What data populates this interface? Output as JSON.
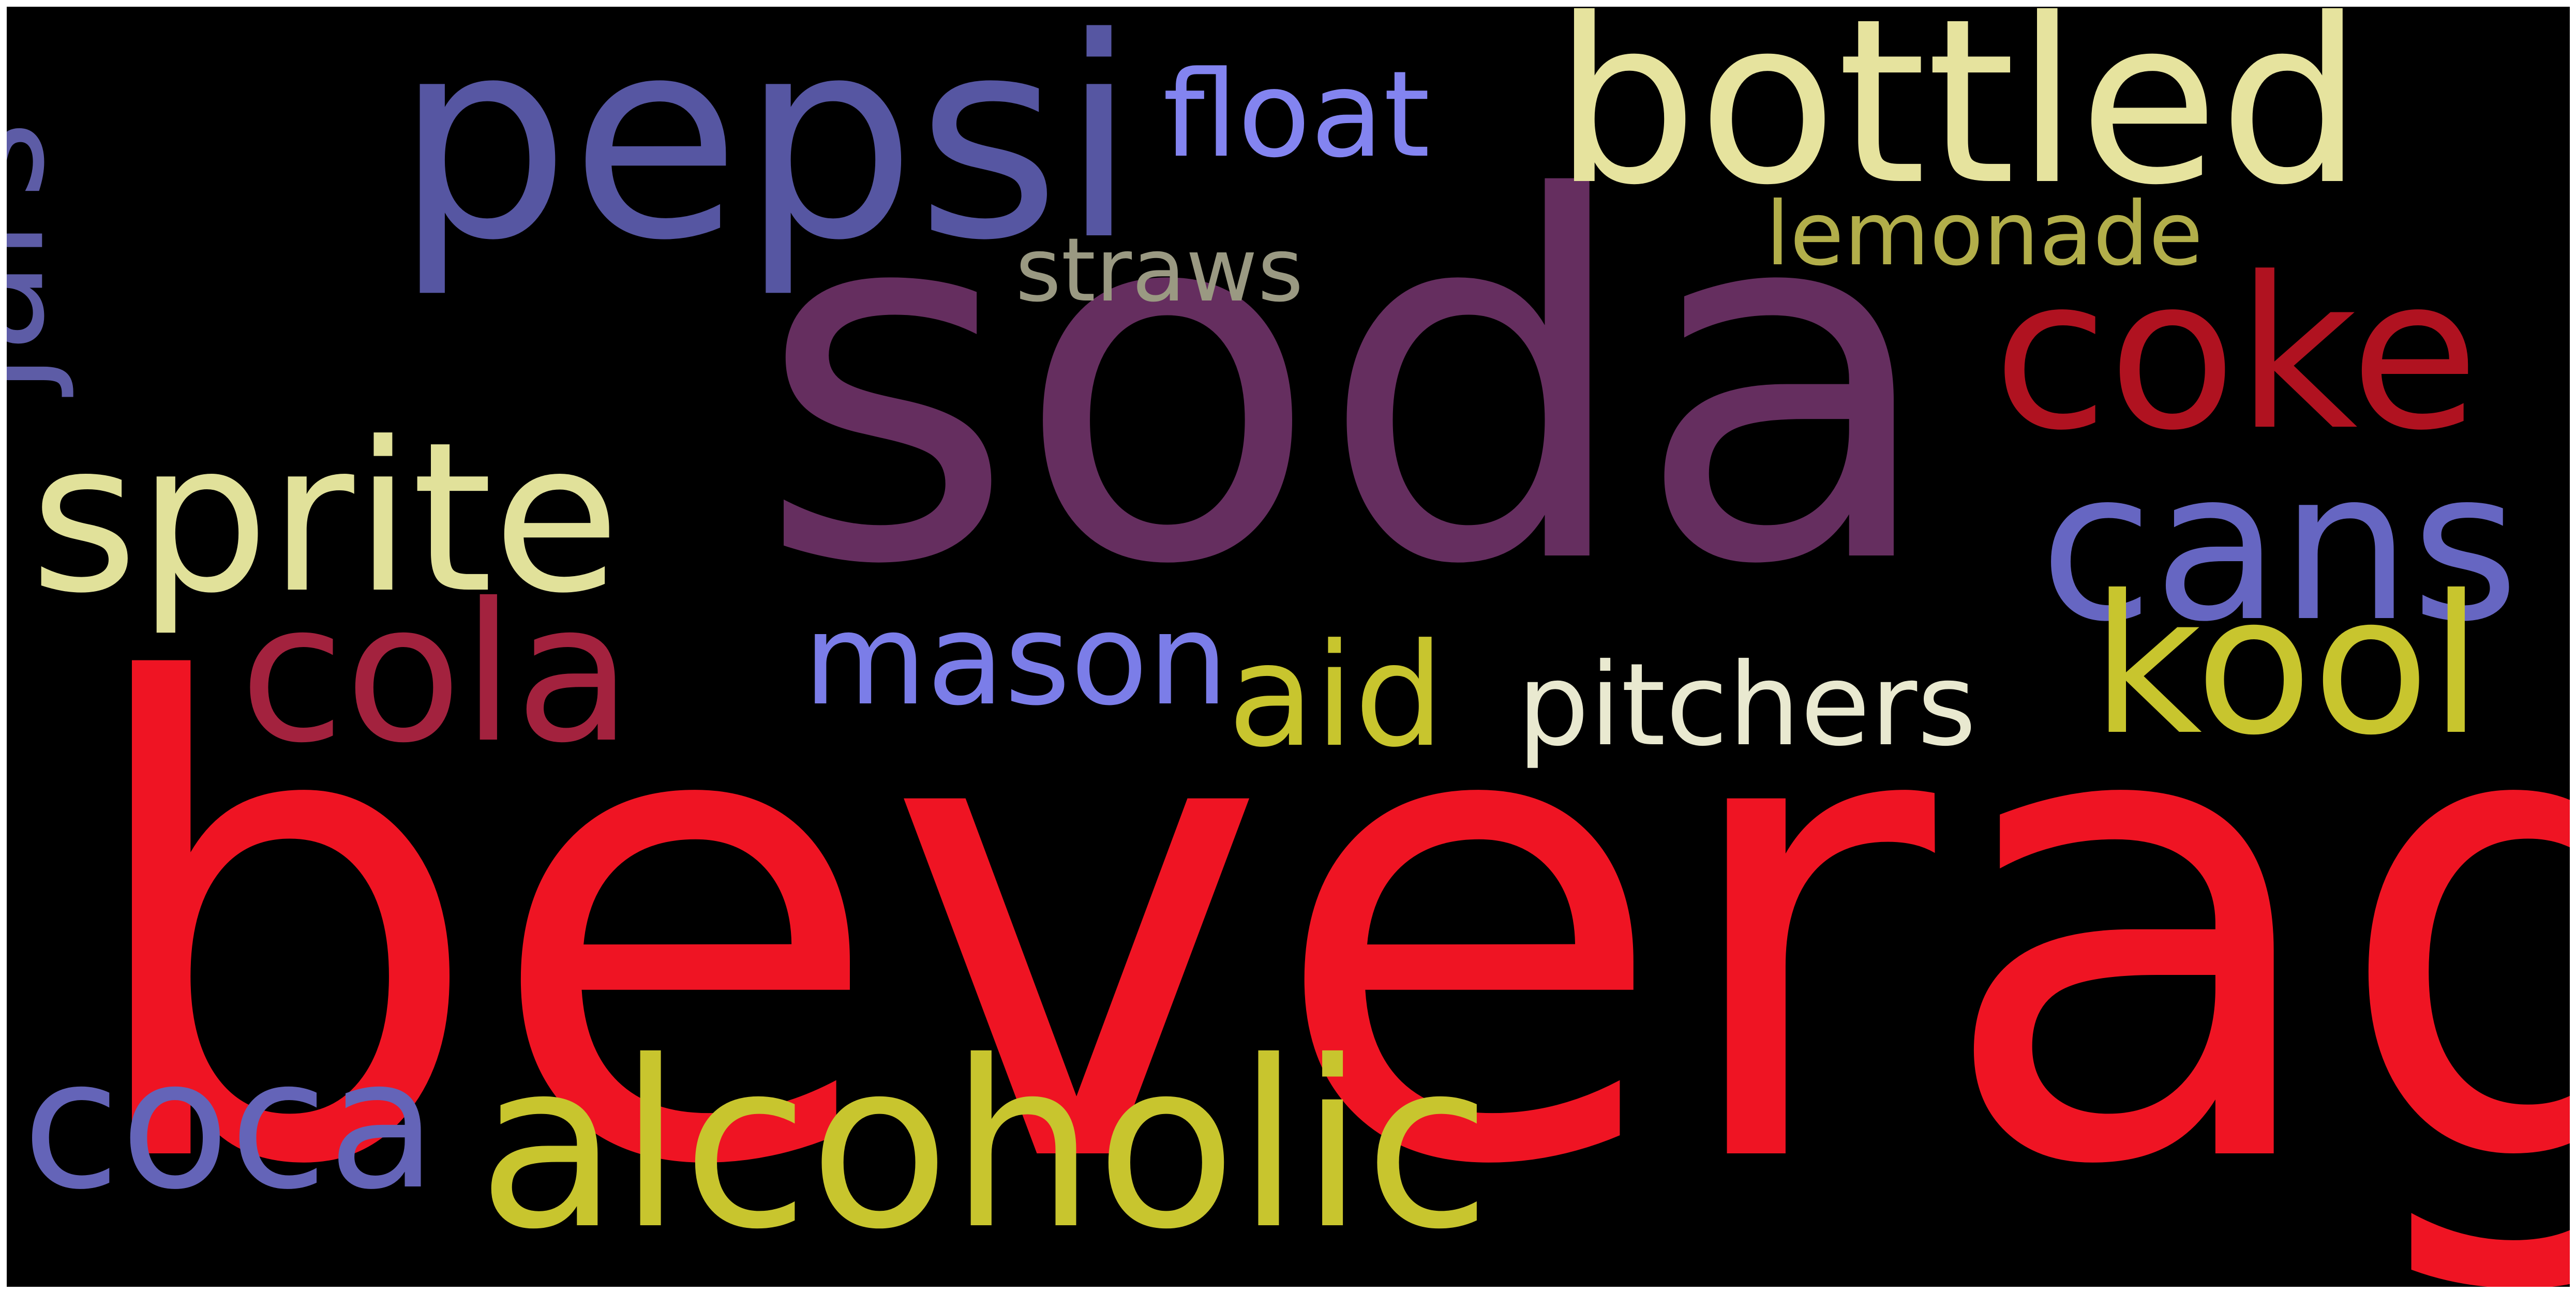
{
  "background_color": "#000000",
  "frame_color": "#ffffff",
  "words": [
    {
      "text": "beverage",
      "color": "#ef1423"
    },
    {
      "text": "soda",
      "color": "#652e5f"
    },
    {
      "text": "pepsi",
      "color": "#5656a2"
    },
    {
      "text": "bottled",
      "color": "#e6e39e"
    },
    {
      "text": "alcoholic",
      "color": "#c8c52e"
    },
    {
      "text": "sprite",
      "color": "#e1e19a"
    },
    {
      "text": "coke",
      "color": "#b01220"
    },
    {
      "text": "cans",
      "color": "#6666c2"
    },
    {
      "text": "cola",
      "color": "#a3223e"
    },
    {
      "text": "kool",
      "color": "#c8c52e"
    },
    {
      "text": "coca",
      "color": "#6464b8"
    },
    {
      "text": "jars",
      "color": "#5d5ca6"
    },
    {
      "text": "mason",
      "color": "#7b7de8"
    },
    {
      "text": "aid",
      "color": "#c8c52e"
    },
    {
      "text": "pitchers",
      "color": "#e9e9d0"
    },
    {
      "text": "float",
      "color": "#8384f0"
    },
    {
      "text": "lemonade",
      "color": "#b2ae4a"
    },
    {
      "text": "straws",
      "color": "#9a9982"
    }
  ]
}
